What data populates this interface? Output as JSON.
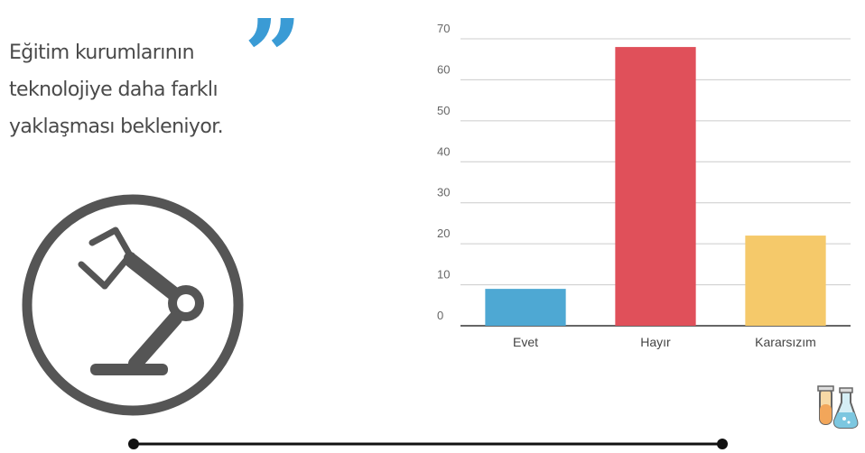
{
  "quote": {
    "lines": [
      "Eğitim kurumlarının",
      "teknolojiye daha farklı",
      "yaklaşması bekleniyor."
    ]
  },
  "icons": {
    "quote_mark": "closing-quote-icon",
    "robot_arm": "robot-arm-icon",
    "flask": "flask-icon"
  },
  "colors": {
    "quote_mark": "#3a9bd5",
    "text": "#4a4a4a",
    "icon": "#555555",
    "grid": "#cccccc",
    "axis": "#333333"
  },
  "chart_data": {
    "type": "bar",
    "title": "",
    "xlabel": "",
    "ylabel": "",
    "categories": [
      "Evet",
      "Hayır",
      "Kararsızım"
    ],
    "values": [
      9,
      68,
      22
    ],
    "colors": [
      "#4ea8d3",
      "#e0505a",
      "#f5c96a"
    ],
    "ylim": [
      0,
      70
    ],
    "yticks": [
      0,
      10,
      20,
      30,
      40,
      50,
      60,
      70
    ],
    "grid": true,
    "legend": "none"
  }
}
